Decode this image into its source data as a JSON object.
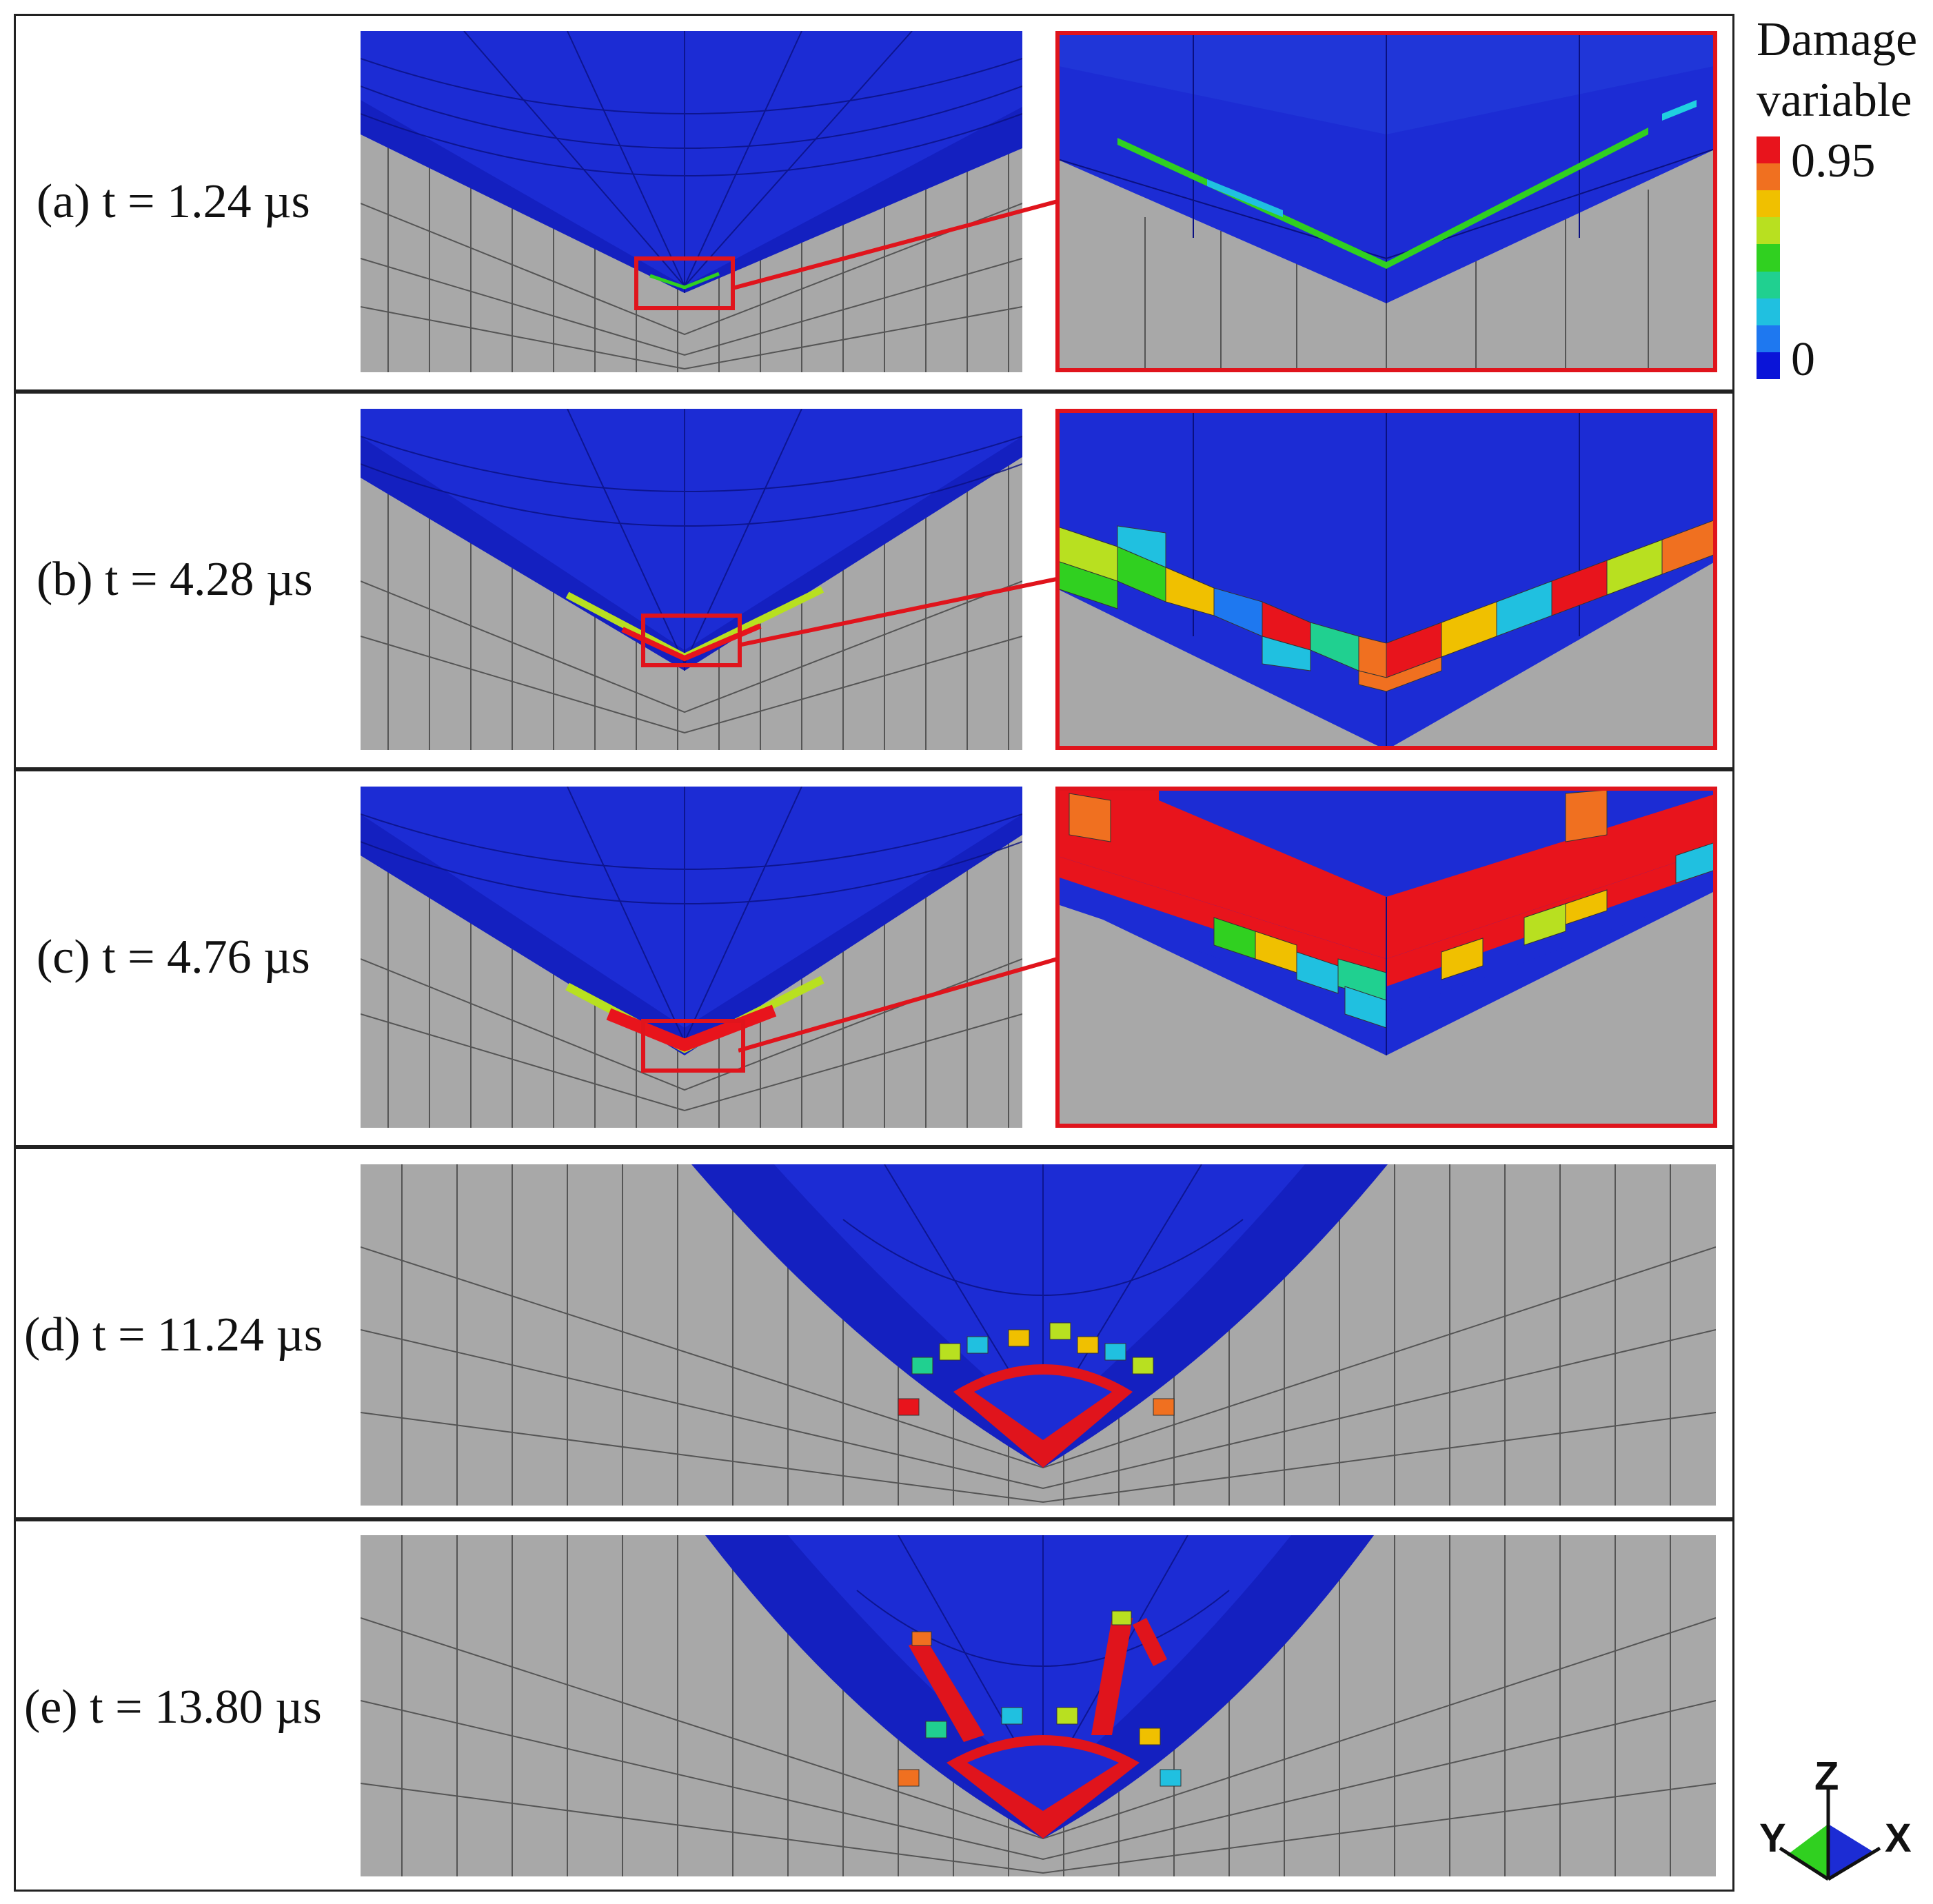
{
  "panels": [
    {
      "id": "a",
      "label": "(a) t = 1.24 µs"
    },
    {
      "id": "b",
      "label": "(b) t = 4.28 µs"
    },
    {
      "id": "c",
      "label": "(c) t = 4.76 µs"
    },
    {
      "id": "d",
      "label": "(d) t = 11.24 µs"
    },
    {
      "id": "e",
      "label": "(e) t = 13.80 µs"
    }
  ],
  "legend": {
    "title_line1": "Damage",
    "title_line2": "variable",
    "max_label": "0.95",
    "min_label": "0",
    "colors": [
      "#e8141c",
      "#f07020",
      "#f0c000",
      "#b8e020",
      "#30d020",
      "#20d090",
      "#20c0e0",
      "#1e78f0",
      "#0a14d8"
    ]
  },
  "axes_triad": {
    "z_label": "Z",
    "y_label": "Y",
    "x_label": "X"
  },
  "colors": {
    "mesh_gray": "#a8a8a8",
    "surface_blue": "#1c2cd4",
    "surface_blue_dark": "#1420c0",
    "damage_red": "#e0141c",
    "highlight_box": "#e0141c"
  }
}
